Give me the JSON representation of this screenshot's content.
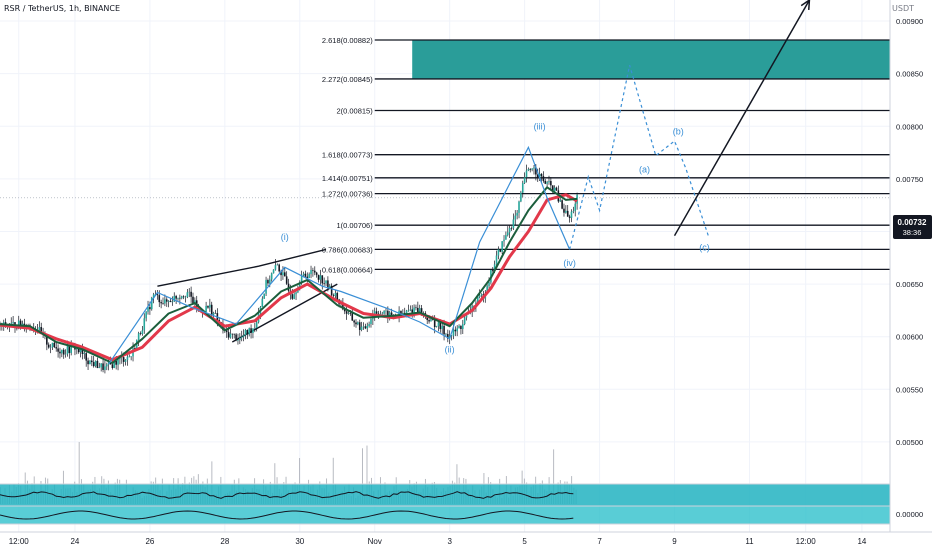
{
  "symbol_header": "RSR / TetherUS, 1h, BINANCE",
  "axis_unit": "USDT",
  "colors": {
    "accent_teal": "#2a9d99",
    "wave_blue": "#3a8fd6",
    "ma_red": "#e2384a",
    "ma_green": "#1b5e3c",
    "price_tag": "#131722"
  },
  "current_price": {
    "label": "0.00732",
    "countdown": "38:36",
    "value": 0.00732
  },
  "chart_data": {
    "type": "line",
    "title": "RSR / TetherUS, 1h, BINANCE",
    "ylabel": "USDT",
    "ylim": [
      0.0046,
      0.0092
    ],
    "y_ticks": [
      {
        "value": 0.009,
        "label": "0.00900"
      },
      {
        "value": 0.0085,
        "label": "0.00850"
      },
      {
        "value": 0.008,
        "label": "0.00800"
      },
      {
        "value": 0.0075,
        "label": "0.00750"
      },
      {
        "value": 0.007,
        "label": "0.00700"
      },
      {
        "value": 0.0065,
        "label": "0.00650"
      },
      {
        "value": 0.006,
        "label": "0.00600"
      },
      {
        "value": 0.0055,
        "label": "0.00550"
      },
      {
        "value": 0.005,
        "label": "0.00500"
      }
    ],
    "x_ticks": [
      {
        "label": "12:00",
        "day": 22.5
      },
      {
        "label": "24",
        "day": 24
      },
      {
        "label": "26",
        "day": 26
      },
      {
        "label": "28",
        "day": 28
      },
      {
        "label": "30",
        "day": 30
      },
      {
        "label": "Nov",
        "day": 32
      },
      {
        "label": "3",
        "day": 34
      },
      {
        "label": "5",
        "day": 36
      },
      {
        "label": "7",
        "day": 38
      },
      {
        "label": "9",
        "day": 40
      },
      {
        "label": "11",
        "day": 42
      },
      {
        "label": "12:00",
        "day": 43.5
      },
      {
        "label": "14",
        "day": 45
      }
    ],
    "fib_levels": [
      {
        "label": "2.618(0.00882)",
        "value": 0.00882
      },
      {
        "label": "2.272(0.00845)",
        "value": 0.00845
      },
      {
        "label": "2(0.00815)",
        "value": 0.00815
      },
      {
        "label": "1.618(0.00773)",
        "value": 0.00773
      },
      {
        "label": "1.414(0.00751)",
        "value": 0.00751
      },
      {
        "label": "1.272(0.00736)",
        "value": 0.00736
      },
      {
        "label": "1(0.00706)",
        "value": 0.00706
      },
      {
        "label": "0.786(0.00683)",
        "value": 0.00683
      },
      {
        "label": "0.618(0.00664)",
        "value": 0.00664
      }
    ],
    "target_zone": {
      "from": 0.00845,
      "to": 0.00882,
      "start_day": 33.0
    },
    "price_series": {
      "day": [
        22.0,
        22.6,
        23.0,
        23.3,
        23.7,
        24.0,
        24.4,
        24.8,
        25.2,
        25.5,
        25.8,
        26.1,
        26.4,
        26.7,
        27.0,
        27.3,
        27.6,
        28.0,
        28.4,
        28.8,
        29.1,
        29.4,
        29.8,
        30.1,
        30.4,
        30.7,
        31.0,
        31.3,
        31.7,
        32.0,
        32.4,
        32.8,
        33.1,
        33.4,
        33.7,
        34.0,
        34.3,
        34.6,
        34.9,
        35.1,
        35.3,
        35.6,
        35.8,
        36.0,
        36.2,
        36.5,
        36.8,
        37.0,
        37.2,
        37.4
      ],
      "price": [
        0.0061,
        0.00612,
        0.00608,
        0.00592,
        0.00586,
        0.0059,
        0.00576,
        0.0057,
        0.00578,
        0.00582,
        0.0061,
        0.0064,
        0.00632,
        0.00638,
        0.00642,
        0.00625,
        0.00628,
        0.00604,
        0.00598,
        0.0061,
        0.0065,
        0.00668,
        0.0064,
        0.00658,
        0.00662,
        0.0065,
        0.00636,
        0.0062,
        0.00606,
        0.00624,
        0.0062,
        0.00622,
        0.00628,
        0.00618,
        0.0061,
        0.006,
        0.0061,
        0.00628,
        0.0064,
        0.0066,
        0.0068,
        0.00704,
        0.00716,
        0.00752,
        0.00762,
        0.00748,
        0.0074,
        0.00722,
        0.00712,
        0.00732
      ]
    },
    "ma_red": {
      "day": [
        22.0,
        22.8,
        23.5,
        24.2,
        25.0,
        25.8,
        26.5,
        27.2,
        28.0,
        28.8,
        29.5,
        30.2,
        31.0,
        31.7,
        32.5,
        33.2,
        34.0,
        34.6,
        35.1,
        35.6,
        36.1,
        36.6,
        37.1,
        37.4
      ],
      "value": [
        0.00611,
        0.00608,
        0.00598,
        0.0059,
        0.00578,
        0.0059,
        0.00615,
        0.00628,
        0.0061,
        0.00615,
        0.00637,
        0.0065,
        0.00634,
        0.00622,
        0.00618,
        0.00622,
        0.00612,
        0.00625,
        0.00646,
        0.00676,
        0.007,
        0.0073,
        0.00735,
        0.00729
      ]
    },
    "ma_green": {
      "day": [
        22.0,
        22.8,
        23.5,
        24.2,
        25.0,
        25.8,
        26.5,
        27.2,
        28.0,
        28.8,
        29.5,
        30.2,
        31.0,
        31.7,
        32.5,
        33.2,
        34.0,
        34.6,
        35.1,
        35.6,
        36.1,
        36.6,
        37.1,
        37.4
      ],
      "value": [
        0.00612,
        0.0061,
        0.00595,
        0.00588,
        0.00575,
        0.00598,
        0.00622,
        0.00632,
        0.00606,
        0.0062,
        0.00643,
        0.00654,
        0.0063,
        0.00618,
        0.0062,
        0.00623,
        0.0061,
        0.00632,
        0.00656,
        0.0069,
        0.0072,
        0.00742,
        0.0073,
        0.00731
      ]
    },
    "wave_path": {
      "day": [
        24.9,
        26.2,
        27.1,
        28.3,
        29.6,
        30.6,
        31.1,
        32.4,
        33.2,
        34.0,
        34.8,
        36.1,
        36.6,
        37.2,
        37.7,
        38.0,
        38.8,
        39.5,
        40.0,
        40.3,
        40.9
      ],
      "price": [
        0.00574,
        0.00642,
        0.00628,
        0.00612,
        0.00666,
        0.00648,
        0.00643,
        0.00626,
        0.00614,
        0.00598,
        0.0069,
        0.0078,
        0.00732,
        0.00683,
        0.00752,
        0.0072,
        0.00858,
        0.00772,
        0.00786,
        0.0076,
        0.00696
      ]
    },
    "wave_labels": [
      {
        "text": "(i)",
        "day": 29.6,
        "price": 0.00692
      },
      {
        "text": "(ii)",
        "day": 34.0,
        "price": 0.00585
      },
      {
        "text": "(iii)",
        "day": 36.4,
        "price": 0.00797
      },
      {
        "text": "(iv)",
        "day": 37.2,
        "price": 0.00667
      },
      {
        "text": "(a)",
        "day": 39.2,
        "price": 0.00756
      },
      {
        "text": "(b)",
        "day": 40.1,
        "price": 0.00792
      },
      {
        "text": "(c)",
        "day": 40.8,
        "price": 0.00682
      }
    ],
    "wedges": [
      {
        "points": [
          {
            "day": 26.2,
            "price": 0.00648
          },
          {
            "day": 28.9,
            "price": 0.00667
          },
          {
            "day": 30.7,
            "price": 0.00683
          }
        ]
      },
      {
        "points": [
          {
            "day": 28.2,
            "price": 0.00595
          },
          {
            "day": 31.0,
            "price": 0.0065
          }
        ]
      }
    ],
    "projection_arrow": {
      "from_day": 40.0,
      "from_price": 0.00696,
      "to_day": 43.6,
      "to_price": 0.0092
    }
  }
}
